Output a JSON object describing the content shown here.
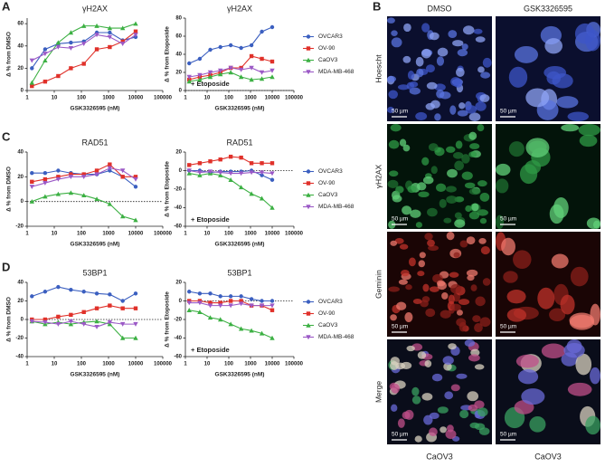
{
  "panel_labels": [
    "A",
    "B",
    "C",
    "D"
  ],
  "micrographs": {
    "columns": [
      {
        "header": "DMSO",
        "footer": "CaOV3"
      },
      {
        "header": "GSK3326595",
        "footer": "CaOV3"
      }
    ],
    "rows": [
      "Hoescht",
      "γH2AX",
      "Geminin",
      "Merge"
    ],
    "scale_bar": "50 µm"
  },
  "chart_data": [
    {
      "type": "line",
      "title": "γH2AX",
      "xlabel": "GSK3326595 (nM)",
      "ylabel": "Δ % from DMSO",
      "xscale": "log",
      "x": [
        1.5,
        4.6,
        14,
        41,
        123,
        370,
        1111,
        3333,
        10000
      ],
      "xlim": [
        1,
        100000
      ],
      "xticks": [
        1,
        10,
        100,
        1000,
        10000,
        100000
      ],
      "ylim": [
        0,
        65
      ],
      "yticks": [
        0,
        20,
        40,
        60
      ],
      "zero_line": false,
      "series": [
        {
          "color": "#3b5fc0",
          "values": [
            20,
            37,
            42,
            43,
            44,
            52,
            52,
            45,
            48
          ]
        },
        {
          "color": "#e0312a",
          "values": [
            4,
            8,
            13,
            20,
            24,
            37,
            39,
            44,
            53
          ]
        },
        {
          "color": "#3cb043",
          "values": [
            7,
            27,
            43,
            52,
            58,
            58,
            56,
            56,
            60
          ]
        },
        {
          "color": "#9b59c6",
          "values": [
            27,
            33,
            39,
            38,
            42,
            50,
            48,
            42,
            50
          ]
        }
      ]
    },
    {
      "type": "line",
      "title": "γH2AX",
      "xlabel": "GSK3326595 (nM)",
      "ylabel": "Δ % from Etoposide",
      "xscale": "log",
      "x": [
        1.5,
        4.6,
        14,
        41,
        123,
        370,
        1111,
        3333,
        10000
      ],
      "xlim": [
        1,
        100000
      ],
      "xticks": [
        1,
        10,
        100,
        1000,
        10000,
        100000
      ],
      "ylim": [
        0,
        80
      ],
      "yticks": [
        0,
        20,
        40,
        60,
        80
      ],
      "zero_line": true,
      "annotation": "+ Etoposide",
      "legend": "right",
      "series": [
        {
          "name": "OVCAR3",
          "color": "#3b5fc0",
          "values": [
            30,
            35,
            45,
            48,
            50,
            47,
            50,
            65,
            70
          ]
        },
        {
          "name": "OV-90",
          "color": "#e0312a",
          "values": [
            12,
            15,
            17,
            20,
            25,
            25,
            38,
            35,
            32
          ]
        },
        {
          "name": "CaOV3",
          "color": "#3cb043",
          "values": [
            10,
            12,
            15,
            18,
            20,
            15,
            12,
            13,
            15
          ]
        },
        {
          "name": "MDA-MB-468",
          "color": "#9b59c6",
          "values": [
            15,
            17,
            20,
            22,
            25,
            23,
            25,
            20,
            22
          ]
        }
      ]
    },
    {
      "type": "line",
      "title": "RAD51",
      "xlabel": "GSK3326595 (nM)",
      "ylabel": "Δ % from DMSO",
      "xscale": "log",
      "x": [
        1.5,
        4.6,
        14,
        41,
        123,
        370,
        1111,
        3333,
        10000
      ],
      "xlim": [
        1,
        100000
      ],
      "xticks": [
        1,
        10,
        100,
        1000,
        10000,
        100000
      ],
      "ylim": [
        -20,
        40
      ],
      "yticks": [
        -20,
        0,
        20,
        40
      ],
      "zero_line": true,
      "series": [
        {
          "color": "#3b5fc0",
          "values": [
            23,
            23,
            25,
            23,
            22,
            22,
            25,
            20,
            12
          ]
        },
        {
          "color": "#e0312a",
          "values": [
            16,
            18,
            20,
            22,
            22,
            25,
            30,
            20,
            20
          ]
        },
        {
          "color": "#3cb043",
          "values": [
            0,
            4,
            6,
            7,
            5,
            2,
            -2,
            -12,
            -15
          ]
        },
        {
          "color": "#9b59c6",
          "values": [
            12,
            15,
            18,
            20,
            20,
            22,
            27,
            25,
            18
          ]
        }
      ]
    },
    {
      "type": "line",
      "title": "RAD51",
      "xlabel": "GSK3326595 (nM)",
      "ylabel": "Δ % from Etoposide",
      "xscale": "log",
      "x": [
        1.5,
        4.6,
        14,
        41,
        123,
        370,
        1111,
        3333,
        10000
      ],
      "xlim": [
        1,
        100000
      ],
      "xticks": [
        1,
        10,
        100,
        1000,
        10000,
        100000
      ],
      "ylim": [
        -60,
        20
      ],
      "yticks": [
        -60,
        -40,
        -20,
        0,
        20
      ],
      "zero_line": true,
      "annotation": "+ Etoposide",
      "legend": "right",
      "series": [
        {
          "name": "OVCAR3",
          "color": "#3b5fc0",
          "values": [
            0,
            0,
            -2,
            -1,
            -1,
            -1,
            0,
            -5,
            -10
          ]
        },
        {
          "name": "OV-90",
          "color": "#e0312a",
          "values": [
            6,
            8,
            10,
            12,
            15,
            14,
            8,
            8,
            8
          ]
        },
        {
          "name": "CaOV3",
          "color": "#3cb043",
          "values": [
            -3,
            -5,
            -3,
            -5,
            -10,
            -18,
            -25,
            -30,
            -40
          ]
        },
        {
          "name": "MDA-MB-468",
          "color": "#9b59c6",
          "values": [
            0,
            -2,
            -1,
            -2,
            -3,
            -3,
            -2,
            -2,
            -3
          ]
        }
      ]
    },
    {
      "type": "line",
      "title": "53BP1",
      "xlabel": "GSK3326595 (nM)",
      "ylabel": "Δ % from DMSO",
      "xscale": "log",
      "x": [
        1.5,
        4.6,
        14,
        41,
        123,
        370,
        1111,
        3333,
        10000
      ],
      "xlim": [
        1,
        100000
      ],
      "xticks": [
        1,
        10,
        100,
        1000,
        10000,
        100000
      ],
      "ylim": [
        -40,
        40
      ],
      "yticks": [
        -40,
        -20,
        0,
        20,
        40
      ],
      "zero_line": true,
      "series": [
        {
          "color": "#3b5fc0",
          "values": [
            25,
            30,
            35,
            32,
            30,
            28,
            27,
            20,
            28
          ]
        },
        {
          "color": "#e0312a",
          "values": [
            0,
            0,
            3,
            5,
            8,
            12,
            15,
            12,
            12
          ]
        },
        {
          "color": "#3cb043",
          "values": [
            -2,
            -5,
            -3,
            -5,
            -3,
            -2,
            -5,
            -20,
            -20
          ]
        },
        {
          "color": "#9b59c6",
          "values": [
            -2,
            -3,
            -5,
            -2,
            -5,
            -8,
            -3,
            -5,
            -5
          ]
        }
      ]
    },
    {
      "type": "line",
      "title": "53BP1",
      "xlabel": "GSK3326595 (nM)",
      "ylabel": "Δ % from Etoposide",
      "xscale": "log",
      "x": [
        1.5,
        4.6,
        14,
        41,
        123,
        370,
        1111,
        3333,
        10000
      ],
      "xlim": [
        1,
        100000
      ],
      "xticks": [
        1,
        10,
        100,
        1000,
        10000,
        100000
      ],
      "ylim": [
        -60,
        20
      ],
      "yticks": [
        -60,
        -40,
        -20,
        0,
        20
      ],
      "zero_line": true,
      "annotation": "+ Etoposide",
      "legend": "right",
      "series": [
        {
          "name": "OVCAR3",
          "color": "#3b5fc0",
          "values": [
            10,
            8,
            8,
            5,
            5,
            5,
            2,
            0,
            0
          ]
        },
        {
          "name": "OV-90",
          "color": "#e0312a",
          "values": [
            0,
            0,
            -2,
            -2,
            0,
            0,
            -5,
            -5,
            -10
          ]
        },
        {
          "name": "CaOV3",
          "color": "#3cb043",
          "values": [
            -10,
            -12,
            -18,
            -20,
            -25,
            -30,
            -32,
            -35,
            -40
          ]
        },
        {
          "name": "MDA-MB-468",
          "color": "#9b59c6",
          "values": [
            -2,
            -2,
            -5,
            -5,
            -5,
            -3,
            -5,
            -5,
            -5
          ]
        }
      ]
    }
  ]
}
